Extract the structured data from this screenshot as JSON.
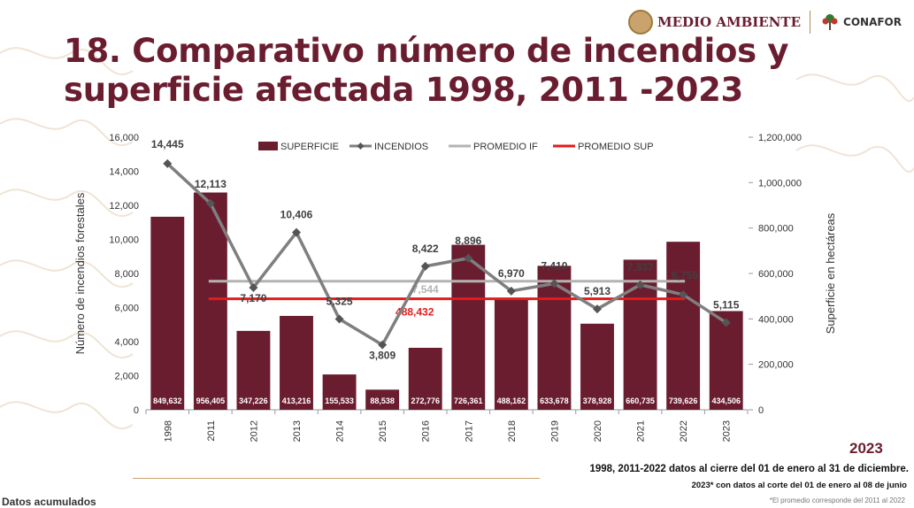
{
  "header": {
    "title_line1": "18. Comparativo número de incendios y",
    "title_line2": "superficie afectada 1998, 2011 -2023",
    "logo_medio_ambiente": "MEDIO AMBIENTE",
    "logo_conafor": "CONAFOR",
    "year_badge": "2023"
  },
  "notes": {
    "line1": "1998, 2011-2022 datos al cierre del 01 de enero al 31 de diciembre.",
    "line2": "2023* con datos al corte del 01 de enero al 08 de junio",
    "line3": "*El promedio corresponde del 2011 al 2022",
    "bottom_left": "Datos acumulados"
  },
  "chart_data": {
    "type": "bar",
    "categories": [
      "1998",
      "2011",
      "2012",
      "2013",
      "2014",
      "2015",
      "2016",
      "2017",
      "2018",
      "2019",
      "2020",
      "2021",
      "2022",
      "2023"
    ],
    "ylabel": "Número de incendios forestales",
    "y2label": "Superficie en hectáreas",
    "ylim": [
      0,
      16000
    ],
    "y2lim": [
      0,
      1200000
    ],
    "y_ticks": [
      "0",
      "2,000",
      "4,000",
      "6,000",
      "8,000",
      "10,000",
      "12,000",
      "14,000",
      "16,000"
    ],
    "y2_ticks": [
      "0",
      "200,000",
      "400,000",
      "600,000",
      "800,000",
      "1,000,000",
      "1,200,000"
    ],
    "legend_position": "top",
    "series": [
      {
        "name": "SUPERFICIE",
        "type": "bar",
        "axis": "right",
        "color": "#6b1d30",
        "values": [
          849632,
          956405,
          347226,
          413216,
          155533,
          88538,
          272776,
          726361,
          488162,
          633678,
          378928,
          660735,
          739626,
          434506
        ],
        "labels": [
          "849,632",
          "956,405",
          "347,226",
          "413,216",
          "155,533",
          "88,538",
          "272,776",
          "726,361",
          "488,162",
          "633,678",
          "378,928",
          "660,735",
          "739,626",
          "434,506"
        ]
      },
      {
        "name": "INCENDIOS",
        "type": "line",
        "axis": "left",
        "color": "#7f7f7f",
        "values": [
          14445,
          12113,
          7170,
          10406,
          5325,
          3809,
          8422,
          8896,
          6970,
          7410,
          5913,
          7337,
          6755,
          5115
        ],
        "labels": [
          "14,445",
          "12,113",
          "7,170",
          "10,406",
          "5,325",
          "3,809",
          "8,422",
          "8,896",
          "6,970",
          "7,410",
          "5,913",
          "7,337",
          "6,755",
          "5,115"
        ]
      },
      {
        "name": "PROMEDIO IF",
        "type": "hline",
        "axis": "left",
        "color": "#b3b3b3",
        "value": 7544,
        "label": "7,544"
      },
      {
        "name": "PROMEDIO SUP",
        "type": "hline",
        "axis": "right",
        "color": "#e31b1b",
        "value": 488432,
        "label": "488,432"
      }
    ]
  }
}
